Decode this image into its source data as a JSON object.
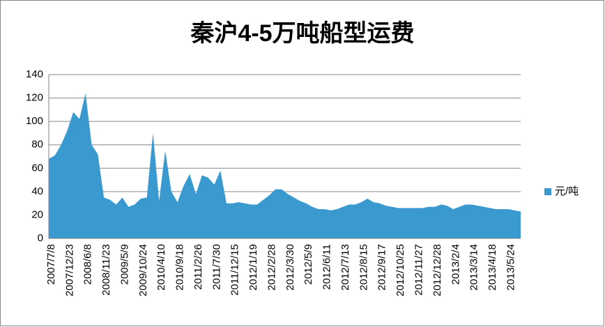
{
  "chart_data": {
    "type": "area",
    "title": "秦沪4-5万吨船型运费",
    "categories": [
      "2007/7/8",
      null,
      null,
      "2007/12/23",
      null,
      null,
      "2008/6/8",
      null,
      null,
      "2008/11/23",
      null,
      null,
      "2009/5/9",
      null,
      null,
      "2009/10/24",
      null,
      null,
      "2010/4/10",
      null,
      null,
      "2010/9/18",
      null,
      null,
      "2011/2/26",
      null,
      null,
      "2011/7/30",
      null,
      null,
      "2011/12/15",
      null,
      null,
      "2012/1/19",
      null,
      null,
      "2012/2/28",
      null,
      null,
      "2012/3/30",
      null,
      null,
      "2012/5/9",
      null,
      null,
      "2012/6/11",
      null,
      null,
      "2012/7/13",
      null,
      null,
      "2012/8/15",
      null,
      null,
      "2012/9/17",
      null,
      null,
      "2012/10/25",
      null,
      null,
      "2012/11/27",
      null,
      null,
      "2012/12/28",
      null,
      null,
      "2013/2/4",
      null,
      null,
      "2013/3/14",
      null,
      null,
      "2013/4/18",
      null,
      null,
      "2013/5/24",
      null,
      null
    ],
    "series": [
      {
        "name": "元/吨",
        "color": "#3a9ad0",
        "values": [
          68,
          71,
          80,
          92,
          108,
          102,
          124,
          80,
          72,
          35,
          33,
          29,
          35,
          27,
          29,
          34,
          35,
          90,
          32,
          75,
          40,
          31,
          45,
          55,
          38,
          54,
          52,
          46,
          58,
          30,
          30,
          31,
          30,
          29,
          29,
          33,
          37,
          42,
          42,
          38,
          35,
          32,
          30,
          27,
          25,
          25,
          24,
          25,
          27,
          29,
          29,
          31,
          34,
          31,
          30,
          28,
          27,
          26,
          26,
          26,
          26,
          26,
          27,
          27,
          29,
          28,
          25,
          27,
          29,
          29,
          28,
          27,
          26,
          25,
          25,
          25,
          24,
          23
        ]
      }
    ],
    "ylim": [
      0,
      140
    ],
    "yticks": [
      0,
      20,
      40,
      60,
      80,
      100,
      120,
      140
    ],
    "grid": true,
    "legend": "right"
  }
}
